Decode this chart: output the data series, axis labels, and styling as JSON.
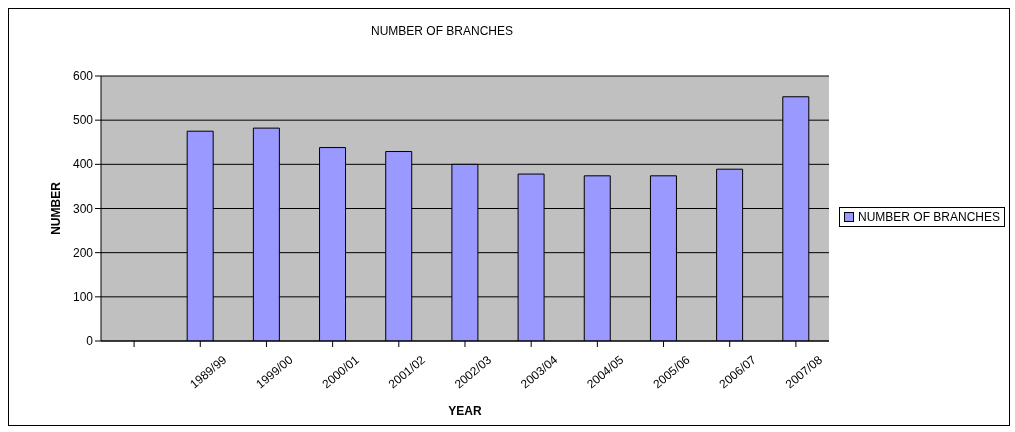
{
  "chart_data": {
    "type": "bar",
    "title": "NUMBER OF BRANCHES",
    "xlabel": "YEAR",
    "ylabel": "NUMBER",
    "categories": [
      null,
      "1989/99",
      "1999/00",
      "2000/01",
      "2001/02",
      "2002/03",
      "2003/04",
      "2004/05",
      "2005/06",
      "2006/07",
      "2007/08"
    ],
    "series": [
      {
        "name": "NUMBER OF BRANCHES",
        "color": "#9999ff",
        "values": [
          null,
          475,
          482,
          438,
          429,
          400,
          378,
          374,
          374,
          389,
          553
        ]
      }
    ],
    "ylim": [
      0,
      600
    ],
    "yticks": [
      0,
      100,
      200,
      300,
      400,
      500,
      600
    ],
    "grid": "y",
    "legend": "right"
  }
}
